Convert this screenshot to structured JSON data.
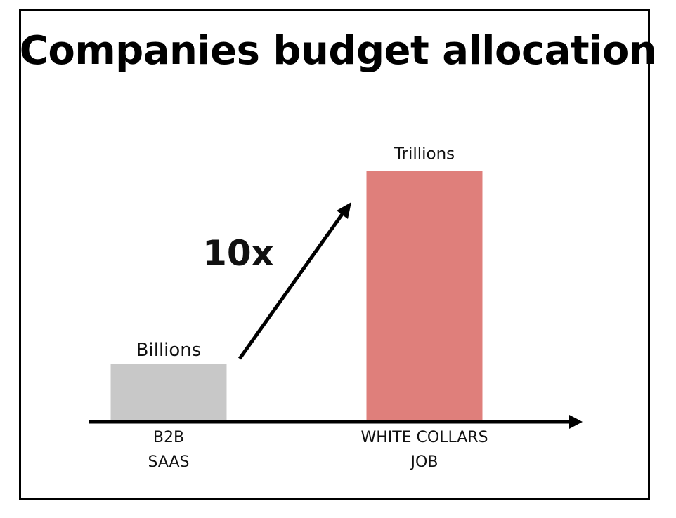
{
  "title": "Companies budget allocation",
  "chart_data": {
    "type": "bar",
    "categories": [
      {
        "lines": [
          "B2B",
          "SAAS"
        ]
      },
      {
        "lines": [
          "WHITE COLLARS",
          "JOB"
        ]
      }
    ],
    "relative_values": [
      1,
      4.4
    ],
    "data_labels": [
      "Billions",
      "Trillions"
    ],
    "annotation": "10x",
    "colors": [
      "#c8c8c8",
      "#df7f7b"
    ],
    "axis_color": "#000000"
  }
}
